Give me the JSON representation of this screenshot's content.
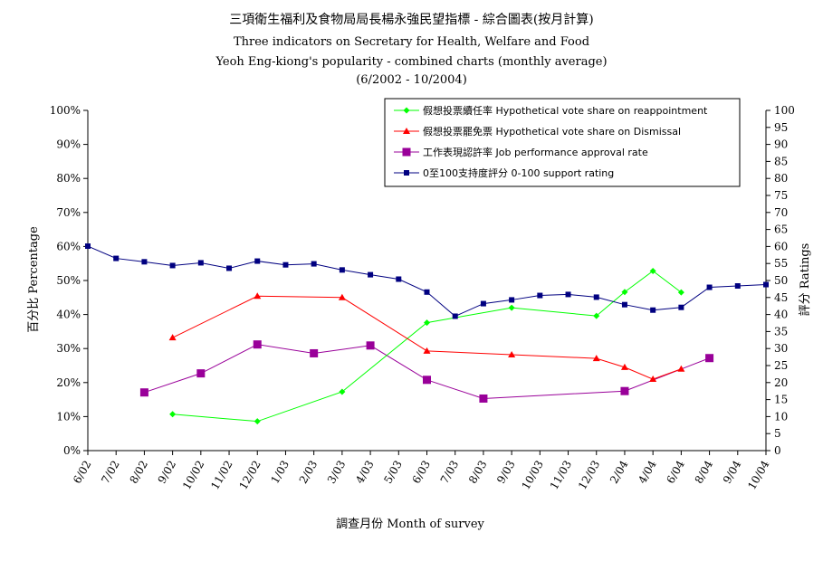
{
  "chart_data": {
    "type": "line",
    "title_lines": [
      "三項衛生福利及食物局局長楊永強民望指標 - 綜合圖表(按月計算)",
      "Three indicators on Secretary for Health, Welfare and Food",
      "Yeoh Eng-kiong's popularity - combined charts (monthly average)",
      "(6/2002 - 10/2004)"
    ],
    "xlabel": "調查月份 Month of survey",
    "ylabel_left": "百分比 Percentage",
    "ylabel_right": "評分 Ratings",
    "categories": [
      "6/02",
      "7/02",
      "8/02",
      "9/02",
      "10/02",
      "11/02",
      "12/02",
      "1/03",
      "2/03",
      "3/03",
      "4/03",
      "5/03",
      "6/03",
      "7/03",
      "8/03",
      "9/03",
      "10/03",
      "11/03",
      "12/03",
      "2/04",
      "4/04",
      "6/04",
      "8/04",
      "9/04",
      "10/04"
    ],
    "y_left_ticks": [
      "0%",
      "10%",
      "20%",
      "30%",
      "40%",
      "50%",
      "60%",
      "70%",
      "80%",
      "90%",
      "100%"
    ],
    "y_right_ticks": [
      "0",
      "5",
      "10",
      "15",
      "20",
      "25",
      "30",
      "35",
      "40",
      "45",
      "50",
      "55",
      "60",
      "65",
      "70",
      "75",
      "80",
      "85",
      "90",
      "95",
      "100"
    ],
    "ylim_left": [
      0,
      100
    ],
    "ylim_right": [
      0,
      100
    ],
    "legend_position": "top-right",
    "series": [
      {
        "name": "假想投票續任率 Hypothetical vote share on reappointment",
        "axis": "left",
        "color": "#00ff00",
        "marker": "diamond",
        "points": [
          {
            "x": "9/02",
            "y": 10.7
          },
          {
            "x": "12/02",
            "y": 8.6
          },
          {
            "x": "3/03",
            "y": 17.3
          },
          {
            "x": "6/03",
            "y": 37.6
          },
          {
            "x": "9/03",
            "y": 42.0
          },
          {
            "x": "12/03",
            "y": 39.6
          },
          {
            "x": "2/04",
            "y": 46.6
          },
          {
            "x": "4/04",
            "y": 52.8
          },
          {
            "x": "6/04",
            "y": 46.5
          }
        ]
      },
      {
        "name": "假想投票罷免票 Hypothetical vote share on Dismissal",
        "axis": "left",
        "color": "#ff0000",
        "marker": "triangle",
        "points": [
          {
            "x": "9/02",
            "y": 33.2
          },
          {
            "x": "12/02",
            "y": 45.4
          },
          {
            "x": "3/03",
            "y": 45.0
          },
          {
            "x": "6/03",
            "y": 29.3
          },
          {
            "x": "9/03",
            "y": 28.2
          },
          {
            "x": "12/03",
            "y": 27.1
          },
          {
            "x": "2/04",
            "y": 24.5
          },
          {
            "x": "4/04",
            "y": 21.0
          },
          {
            "x": "6/04",
            "y": 24.0
          }
        ]
      },
      {
        "name": "工作表現認許率 Job performance approval rate",
        "axis": "left",
        "color": "#990099",
        "marker": "square",
        "points": [
          {
            "x": "8/02",
            "y": 17.1
          },
          {
            "x": "10/02",
            "y": 22.7
          },
          {
            "x": "12/02",
            "y": 31.2
          },
          {
            "x": "2/03",
            "y": 28.6
          },
          {
            "x": "4/03",
            "y": 30.9
          },
          {
            "x": "6/03",
            "y": 20.8
          },
          {
            "x": "8/03",
            "y": 15.3
          },
          {
            "x": "2/04",
            "y": 17.5
          },
          {
            "x": "8/04",
            "y": 27.2
          }
        ]
      },
      {
        "name": "0至100支持度評分 0-100 support rating",
        "axis": "right",
        "color": "#000080",
        "marker": "small-square",
        "points": [
          {
            "x": "6/02",
            "y": 60.1
          },
          {
            "x": "7/02",
            "y": 56.5
          },
          {
            "x": "8/02",
            "y": 55.5
          },
          {
            "x": "9/02",
            "y": 54.4
          },
          {
            "x": "10/02",
            "y": 55.2
          },
          {
            "x": "11/02",
            "y": 53.6
          },
          {
            "x": "12/02",
            "y": 55.7
          },
          {
            "x": "1/03",
            "y": 54.6
          },
          {
            "x": "2/03",
            "y": 54.9
          },
          {
            "x": "3/03",
            "y": 53.1
          },
          {
            "x": "4/03",
            "y": 51.7
          },
          {
            "x": "5/03",
            "y": 50.4
          },
          {
            "x": "6/03",
            "y": 46.6
          },
          {
            "x": "7/03",
            "y": 39.5
          },
          {
            "x": "8/03",
            "y": 43.2
          },
          {
            "x": "9/03",
            "y": 44.3
          },
          {
            "x": "10/03",
            "y": 45.6
          },
          {
            "x": "11/03",
            "y": 45.9
          },
          {
            "x": "12/03",
            "y": 45.1
          },
          {
            "x": "2/04",
            "y": 42.9
          },
          {
            "x": "4/04",
            "y": 41.3
          },
          {
            "x": "6/04",
            "y": 42.1
          },
          {
            "x": "8/04",
            "y": 48.0
          },
          {
            "x": "9/04",
            "y": 48.4
          },
          {
            "x": "10/04",
            "y": 48.8
          }
        ]
      }
    ]
  }
}
